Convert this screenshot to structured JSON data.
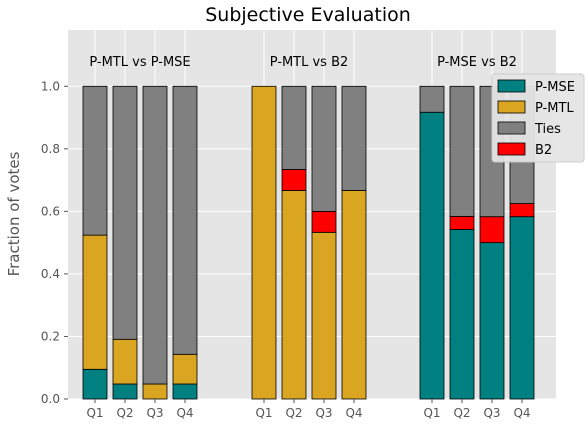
{
  "chart_data": {
    "type": "bar",
    "stacked": true,
    "title": "Subjective Evaluation",
    "xlabel": "",
    "ylabel": "Fraction of votes",
    "ylim": [
      0,
      1.18
    ],
    "yticks": [
      0.0,
      0.2,
      0.4,
      0.6,
      0.8,
      1.0
    ],
    "ytick_labels": [
      "0.0",
      "0.2",
      "0.4",
      "0.6",
      "0.8",
      "1.0"
    ],
    "grid": true,
    "legend_position": "top-right",
    "stack_order": [
      "P-MSE",
      "P-MTL",
      "B2",
      "Ties"
    ],
    "legend": [
      {
        "name": "P-MSE",
        "color": "#008080"
      },
      {
        "name": "P-MTL",
        "color": "#DAA520"
      },
      {
        "name": "Ties",
        "color": "#808080"
      },
      {
        "name": "B2",
        "color": "#FF0000"
      }
    ],
    "groups": [
      {
        "label": "P-MTL vs P-MSE",
        "categories": [
          "Q1",
          "Q2",
          "Q3",
          "Q4"
        ],
        "series": [
          {
            "name": "P-MSE",
            "values": [
              0.095,
              0.048,
              0.0,
              0.048
            ]
          },
          {
            "name": "P-MTL",
            "values": [
              0.429,
              0.143,
              0.048,
              0.095
            ]
          },
          {
            "name": "B2",
            "values": [
              0,
              0,
              0,
              0
            ]
          },
          {
            "name": "Ties",
            "values": [
              0.476,
              0.809,
              0.952,
              0.857
            ]
          }
        ]
      },
      {
        "label": "P-MTL vs B2",
        "categories": [
          "Q1",
          "Q2",
          "Q3",
          "Q4"
        ],
        "series": [
          {
            "name": "P-MSE",
            "values": [
              0,
              0,
              0,
              0
            ]
          },
          {
            "name": "P-MTL",
            "values": [
              1.0,
              0.667,
              0.533,
              0.667
            ]
          },
          {
            "name": "B2",
            "values": [
              0.0,
              0.067,
              0.067,
              0.0
            ]
          },
          {
            "name": "Ties",
            "values": [
              0.0,
              0.266,
              0.4,
              0.333
            ]
          }
        ]
      },
      {
        "label": "P-MSE vs B2",
        "categories": [
          "Q1",
          "Q2",
          "Q3",
          "Q4"
        ],
        "series": [
          {
            "name": "P-MSE",
            "values": [
              0.917,
              0.542,
              0.5,
              0.583
            ]
          },
          {
            "name": "P-MTL",
            "values": [
              0,
              0,
              0,
              0
            ]
          },
          {
            "name": "B2",
            "values": [
              0.0,
              0.042,
              0.083,
              0.042
            ]
          },
          {
            "name": "Ties",
            "values": [
              0.083,
              0.416,
              0.417,
              0.375
            ]
          }
        ]
      }
    ]
  }
}
